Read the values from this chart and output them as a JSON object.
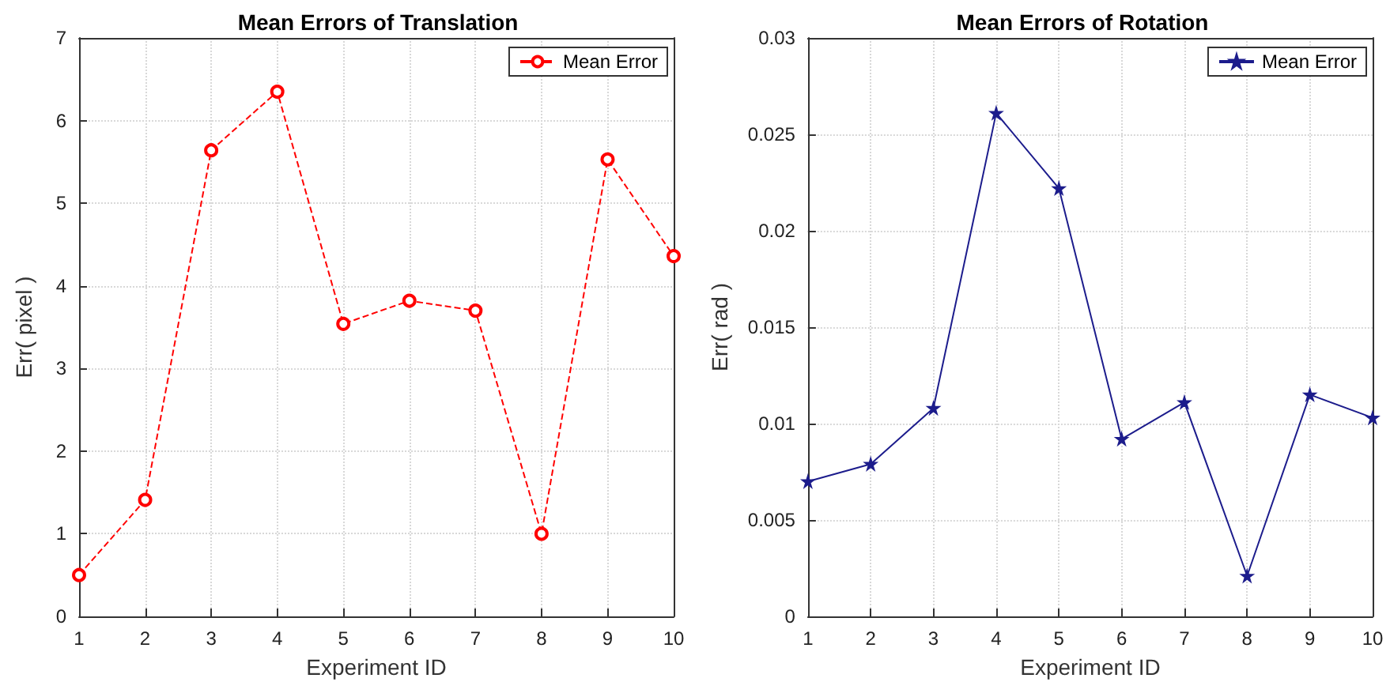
{
  "chart_data": [
    {
      "type": "line",
      "title": "Mean Errors of Translation",
      "xlabel": "Experiment ID",
      "ylabel": "Err( pixel )",
      "x": [
        1,
        2,
        3,
        4,
        5,
        6,
        7,
        8,
        9,
        10
      ],
      "series": [
        {
          "name": "Mean Error",
          "color": "#ff0000",
          "values": [
            0.5,
            1.41,
            5.64,
            6.35,
            3.54,
            3.82,
            3.7,
            1.0,
            5.53,
            4.36
          ]
        }
      ],
      "xlim": [
        1,
        10
      ],
      "xticks": [
        1,
        2,
        3,
        4,
        5,
        6,
        7,
        8,
        9,
        10
      ],
      "ylim": [
        0,
        7
      ],
      "yticks": [
        0,
        1,
        2,
        3,
        4,
        5,
        6,
        7
      ],
      "grid": true,
      "legend": "top right",
      "marker": "circle",
      "line_style": "dashed"
    },
    {
      "type": "line",
      "title": "Mean Errors of Rotation",
      "xlabel": "Experiment ID",
      "ylabel": "Err( rad )",
      "x": [
        1,
        2,
        3,
        4,
        5,
        6,
        7,
        8,
        9,
        10
      ],
      "series": [
        {
          "name": "Mean Error",
          "color": "#1c1c8c",
          "values": [
            0.007,
            0.0079,
            0.0108,
            0.0261,
            0.0222,
            0.0092,
            0.0111,
            0.0021,
            0.0115,
            0.0103
          ]
        }
      ],
      "xlim": [
        1,
        10
      ],
      "xticks": [
        1,
        2,
        3,
        4,
        5,
        6,
        7,
        8,
        9,
        10
      ],
      "ylim": [
        0,
        0.03
      ],
      "yticks": [
        0,
        0.005,
        0.01,
        0.015,
        0.02,
        0.025,
        0.03
      ],
      "grid": true,
      "legend": "top right",
      "marker": "star",
      "line_style": "solid"
    }
  ]
}
